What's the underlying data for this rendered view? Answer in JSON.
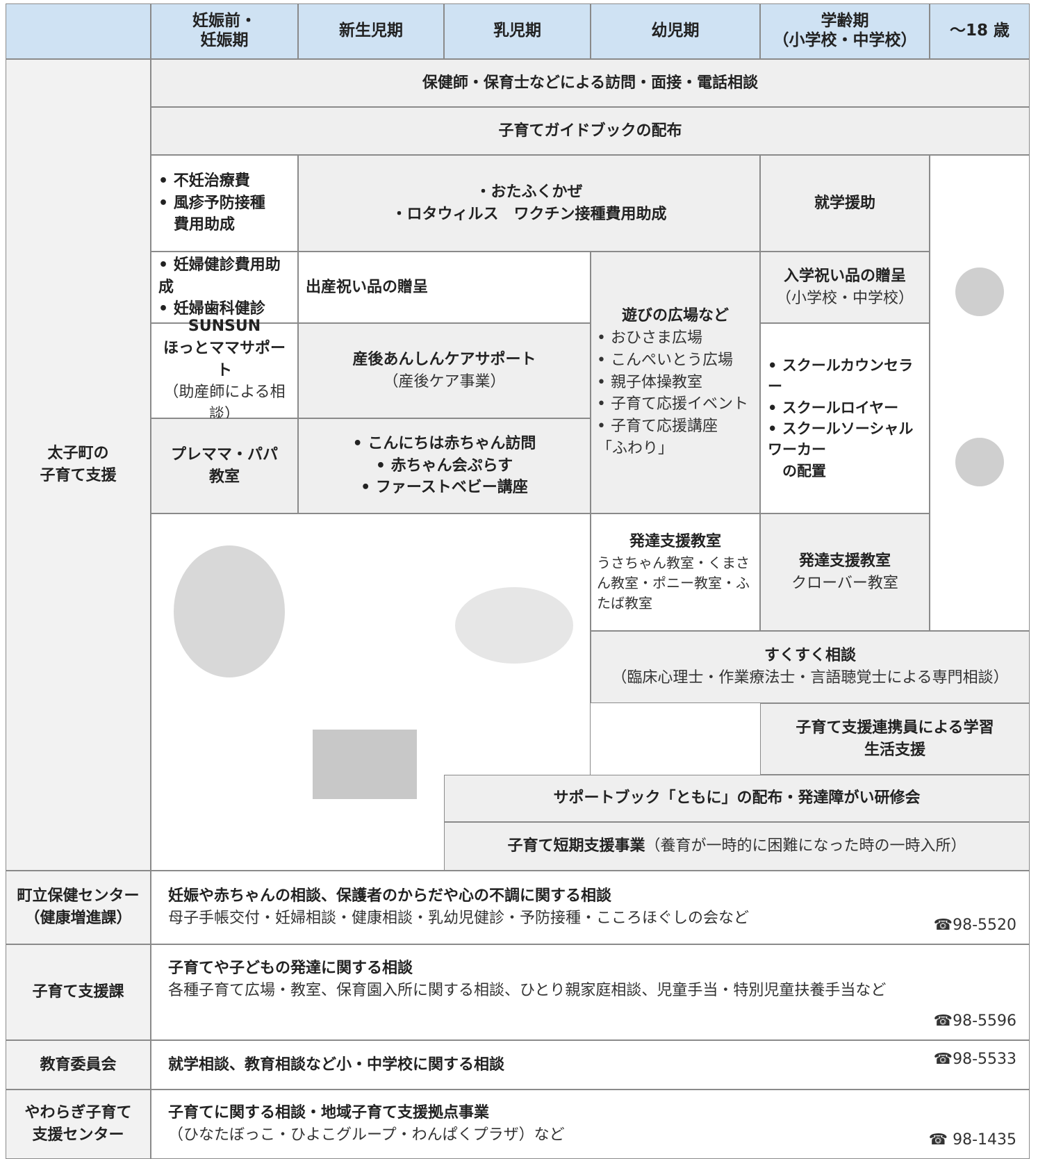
{
  "header": {
    "columns": [
      "妊娠前・\n妊娠期",
      "新生児期",
      "乳児期",
      "幼児期",
      "学齢期\n（小学校・中学校）",
      "～18 歳"
    ]
  },
  "support": {
    "label": "太子町の\n子育て支援",
    "cells": [
      {
        "title": "保健師・保育士などによる訪問・面接・電話相談"
      },
      {
        "title": "子育てガイドブックの配布"
      },
      {
        "title": "• 不妊治療費\n• 風疹予防接種\n　費用助成"
      },
      {
        "title": "・おたふくかぜ\n・ロタウィルス　ワクチン接種費用助成"
      },
      {
        "title": "就学援助"
      },
      {
        "title": "• 妊婦健診費用助成\n• 妊婦歯科健診"
      },
      {
        "title": "出産祝い品の贈呈"
      },
      {
        "title": "遊びの広場など",
        "text": "• おひさま広場\n• こんぺいとう広場\n• 親子体操教室\n• 子育て応援イベント\n• 子育て応援講座\n「ふわり」"
      },
      {
        "title": "入学祝い品の贈呈",
        "text": "（小学校・中学校）"
      },
      {
        "title": "SUNSUN\nほっとママサポート",
        "text": "（助産師による相談）"
      },
      {
        "title": "産後あんしんケアサポート",
        "text": "（産後ケア事業）"
      },
      {
        "title": "• スクールカウンセラー\n• スクールロイヤー\n• スクールソーシャルワーカー\n　の配置"
      },
      {
        "title": "プレママ・パパ\n教室"
      },
      {
        "title": "• こんにちは赤ちゃん訪問\n• 赤ちゃん会ぷらす\n• ファーストベビー講座"
      },
      {
        "title": "発達支援教室",
        "text": "うさちゃん教室・くまさん教室・ポニー教室・ふたば教室"
      },
      {
        "title": "発達支援教室",
        "text": "クローバー教室"
      },
      {
        "title": "すくすく相談",
        "text": "（臨床心理士・作業療法士・言語聴覚士による専門相談）"
      },
      {
        "title": "子育て支援連携員による学習\n生活支援"
      },
      {
        "title": "サポートブック「ともに」の配布・発達障がい研修会"
      },
      {
        "title": "子育て短期支援事業",
        "text": "（養育が一時的に困難になった時の一時入所）"
      }
    ]
  },
  "contacts": [
    {
      "org": "町立保健センター\n（健康増進課）",
      "title": "妊娠や赤ちゃんの相談、保護者のからだや心の不調に関する相談",
      "text": "母子手帳交付・妊婦相談・健康相談・乳幼児健診・予防接種・こころほぐしの会など",
      "phone": "☎98-5520"
    },
    {
      "org": "子育て支援課",
      "title": "子育てや子どもの発達に関する相談",
      "text": "各種子育て広場・教室、保育園入所に関する相談、ひとり親家庭相談、児童手当・特別児童扶養手当など",
      "phone": "☎98-5596"
    },
    {
      "org": "教育委員会",
      "title": "就学相談、教育相談など小・中学校に関する相談",
      "phone": "☎98-5533"
    },
    {
      "org": "やわらぎ子育て\n支援センター",
      "title": "子育てに関する相談・地域子育て支援拠点事業",
      "text": "（ひなたぼっこ・ひよこグループ・わんぱくプラザ）など",
      "phone": "☎ 98-1435"
    }
  ]
}
